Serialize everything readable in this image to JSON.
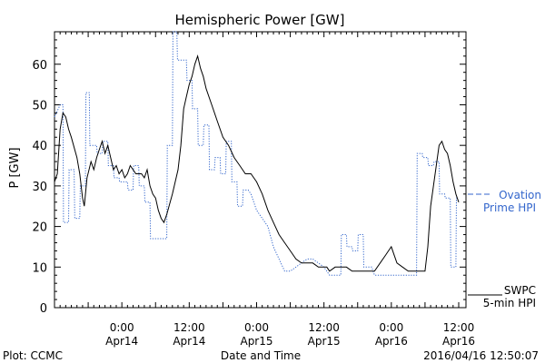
{
  "chart_data": {
    "type": "line",
    "title": "Hemispheric Power [GW]",
    "ylabel": "P [GW]",
    "xlabel": "Date and Time",
    "ylim": [
      0,
      68
    ],
    "xlim": [
      0,
      72
    ],
    "y_ticks": [
      0,
      10,
      20,
      30,
      40,
      50,
      60
    ],
    "x_ticks": [
      {
        "x": 12,
        "line1": "0:00",
        "line2": "Apr14"
      },
      {
        "x": 24,
        "line1": "12:00",
        "line2": "Apr14"
      },
      {
        "x": 36,
        "line1": "0:00",
        "line2": "Apr15"
      },
      {
        "x": 48,
        "line1": "12:00",
        "line2": "Apr15"
      },
      {
        "x": 60,
        "line1": "0:00",
        "line2": "Apr16"
      },
      {
        "x": 72,
        "line1": "12:00",
        "line2": "Apr16"
      }
    ],
    "grid": false,
    "legend_placement": "right",
    "series": [
      {
        "name_line1": "SWPC",
        "name_line2": "5-min HPI",
        "color": "#000000",
        "style": "solid",
        "points": [
          [
            0,
            31
          ],
          [
            0.5,
            33
          ],
          [
            1,
            44
          ],
          [
            1.5,
            48
          ],
          [
            2,
            47
          ],
          [
            2.5,
            44
          ],
          [
            3,
            42
          ],
          [
            4,
            37
          ],
          [
            4.5,
            33
          ],
          [
            5,
            27
          ],
          [
            5.3,
            25
          ],
          [
            5.8,
            32
          ],
          [
            6.5,
            36
          ],
          [
            7,
            34
          ],
          [
            7.5,
            37
          ],
          [
            8,
            39
          ],
          [
            8.5,
            41
          ],
          [
            9,
            38
          ],
          [
            9.5,
            40
          ],
          [
            10,
            37
          ],
          [
            10.5,
            34
          ],
          [
            11,
            35
          ],
          [
            11.5,
            33
          ],
          [
            12,
            34
          ],
          [
            12.5,
            32
          ],
          [
            13,
            33
          ],
          [
            13.5,
            35
          ],
          [
            14,
            34
          ],
          [
            14.5,
            33
          ],
          [
            15,
            33
          ],
          [
            15.5,
            33
          ],
          [
            16,
            32
          ],
          [
            16.5,
            34
          ],
          [
            17,
            30
          ],
          [
            17.5,
            28
          ],
          [
            18,
            27
          ],
          [
            18.5,
            24
          ],
          [
            19,
            22
          ],
          [
            19.5,
            21
          ],
          [
            20,
            23
          ],
          [
            21,
            28
          ],
          [
            22,
            34
          ],
          [
            22.5,
            40
          ],
          [
            23,
            49
          ],
          [
            23.5,
            52
          ],
          [
            24,
            55
          ],
          [
            24.5,
            57
          ],
          [
            25,
            60
          ],
          [
            25.5,
            62
          ],
          [
            26,
            59
          ],
          [
            26.5,
            57
          ],
          [
            27,
            54
          ],
          [
            28,
            50
          ],
          [
            29,
            46
          ],
          [
            30,
            42
          ],
          [
            31,
            40
          ],
          [
            32,
            37
          ],
          [
            33,
            35
          ],
          [
            34,
            33
          ],
          [
            35,
            33
          ],
          [
            36,
            31
          ],
          [
            37,
            28
          ],
          [
            38,
            24
          ],
          [
            39,
            21
          ],
          [
            40,
            18
          ],
          [
            41,
            16
          ],
          [
            42,
            14
          ],
          [
            43,
            12
          ],
          [
            44,
            11
          ],
          [
            45,
            11
          ],
          [
            46,
            11
          ],
          [
            47,
            10
          ],
          [
            48,
            10
          ],
          [
            48.5,
            10
          ],
          [
            49,
            9
          ],
          [
            50,
            10
          ],
          [
            51,
            10
          ],
          [
            52,
            10
          ],
          [
            53,
            9
          ],
          [
            54,
            9
          ],
          [
            55,
            9
          ],
          [
            56,
            9
          ],
          [
            57,
            9
          ],
          [
            58,
            11
          ],
          [
            59,
            13
          ],
          [
            59.5,
            14
          ],
          [
            60,
            15
          ],
          [
            60.5,
            13
          ],
          [
            61,
            11
          ],
          [
            62,
            10
          ],
          [
            63,
            9
          ],
          [
            64,
            9
          ],
          [
            65,
            9
          ],
          [
            66,
            9
          ],
          [
            66.5,
            15
          ],
          [
            67,
            25
          ],
          [
            68,
            35
          ],
          [
            68.5,
            40
          ],
          [
            69,
            41
          ],
          [
            69.5,
            39
          ],
          [
            70,
            38
          ],
          [
            70.5,
            35
          ],
          [
            71,
            31
          ],
          [
            71.5,
            28
          ],
          [
            72,
            26
          ]
        ]
      },
      {
        "name_line1": "Ovation",
        "name_line2": "Prime HPI",
        "color": "#3366cc",
        "style": "dotted",
        "points": [
          [
            0,
            47
          ],
          [
            1,
            50
          ],
          [
            1.5,
            50
          ],
          [
            1.6,
            21
          ],
          [
            2.5,
            21
          ],
          [
            2.6,
            34
          ],
          [
            3.5,
            34
          ],
          [
            3.6,
            22
          ],
          [
            4.5,
            22
          ],
          [
            4.6,
            30
          ],
          [
            5.5,
            30
          ],
          [
            5.6,
            53
          ],
          [
            6.2,
            53
          ],
          [
            6.3,
            40
          ],
          [
            7.5,
            40
          ],
          [
            7.6,
            38
          ],
          [
            8.5,
            38
          ],
          [
            8.6,
            41
          ],
          [
            9.5,
            41
          ],
          [
            9.6,
            35
          ],
          [
            10.5,
            35
          ],
          [
            10.6,
            32
          ],
          [
            11.5,
            32
          ],
          [
            11.6,
            31
          ],
          [
            13,
            31
          ],
          [
            13.1,
            29
          ],
          [
            14,
            29
          ],
          [
            14.1,
            35
          ],
          [
            15,
            35
          ],
          [
            15.1,
            30
          ],
          [
            16,
            30
          ],
          [
            16.1,
            26
          ],
          [
            17,
            26
          ],
          [
            17.1,
            17
          ],
          [
            18,
            17
          ],
          [
            18.1,
            17
          ],
          [
            19,
            17
          ],
          [
            19.1,
            17
          ],
          [
            20,
            17
          ],
          [
            20.1,
            40
          ],
          [
            21,
            40
          ],
          [
            21.1,
            68
          ],
          [
            21.8,
            68
          ],
          [
            21.9,
            61
          ],
          [
            23.5,
            61
          ],
          [
            23.6,
            56
          ],
          [
            24.5,
            56
          ],
          [
            24.6,
            49
          ],
          [
            25.5,
            49
          ],
          [
            25.6,
            40
          ],
          [
            26.5,
            40
          ],
          [
            26.6,
            45
          ],
          [
            27.5,
            45
          ],
          [
            27.6,
            34
          ],
          [
            28.5,
            34
          ],
          [
            28.6,
            37
          ],
          [
            29.5,
            37
          ],
          [
            29.6,
            33
          ],
          [
            30.5,
            33
          ],
          [
            30.6,
            41
          ],
          [
            31.5,
            41
          ],
          [
            31.6,
            31
          ],
          [
            32.5,
            31
          ],
          [
            32.6,
            25
          ],
          [
            33.5,
            25
          ],
          [
            33.6,
            29
          ],
          [
            34.5,
            29
          ],
          [
            35,
            28
          ],
          [
            36,
            24
          ],
          [
            37,
            22
          ],
          [
            38,
            20
          ],
          [
            39,
            15
          ],
          [
            40,
            12
          ],
          [
            41,
            9
          ],
          [
            42,
            9
          ],
          [
            43,
            10
          ],
          [
            44,
            11
          ],
          [
            45,
            12
          ],
          [
            46,
            12
          ],
          [
            47,
            11
          ],
          [
            48,
            10
          ],
          [
            49,
            8
          ],
          [
            50,
            8
          ],
          [
            50.5,
            8
          ],
          [
            51,
            8
          ],
          [
            51.1,
            18
          ],
          [
            52,
            18
          ],
          [
            52.1,
            15
          ],
          [
            53,
            15
          ],
          [
            53.1,
            14
          ],
          [
            54,
            14
          ],
          [
            54.1,
            18
          ],
          [
            55,
            18
          ],
          [
            55.1,
            10
          ],
          [
            56,
            10
          ],
          [
            56.5,
            10
          ],
          [
            57,
            8
          ],
          [
            58,
            8
          ],
          [
            59,
            8
          ],
          [
            60,
            8
          ],
          [
            61,
            8
          ],
          [
            62,
            8
          ],
          [
            63,
            8
          ],
          [
            64,
            8
          ],
          [
            64.5,
            8
          ],
          [
            64.6,
            38
          ],
          [
            65.5,
            38
          ],
          [
            65.6,
            37
          ],
          [
            66.5,
            37
          ],
          [
            66.6,
            35
          ],
          [
            67.5,
            35
          ],
          [
            67.6,
            36
          ],
          [
            68.5,
            36
          ],
          [
            68.6,
            28
          ],
          [
            69.5,
            28
          ],
          [
            69.6,
            27
          ],
          [
            70.5,
            27
          ],
          [
            70.6,
            10
          ],
          [
            71.5,
            10
          ],
          [
            71.6,
            27
          ],
          [
            72,
            27
          ]
        ]
      }
    ],
    "footer": {
      "left": "Plot: CCMC",
      "right": "2016/04/16 12:50:07"
    }
  }
}
